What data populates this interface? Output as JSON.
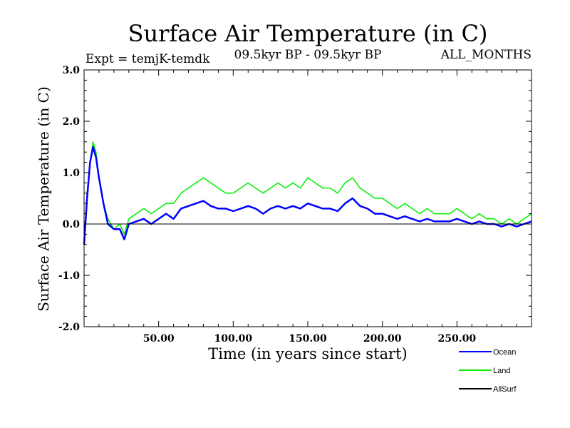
{
  "chart_data": {
    "type": "line",
    "title": "Surface Air Temperature (in C)",
    "subtitle_left": "Expt = temjK-temdk",
    "subtitle_center": "09.5kyr BP - 09.5kyr BP",
    "subtitle_right": "ALL_MONTHS",
    "xlabel": "Time (in years since start)",
    "ylabel": "Surface Air Temperature (in C)",
    "xlim": [
      0,
      300
    ],
    "ylim": [
      -2.0,
      3.0
    ],
    "x_ticks": [
      50,
      100,
      150,
      200,
      250
    ],
    "x_tick_labels": [
      "50.00",
      "100.00",
      "150.00",
      "200.00",
      "250.00"
    ],
    "y_ticks": [
      -2.0,
      -1.0,
      0.0,
      1.0,
      2.0,
      3.0
    ],
    "y_tick_labels": [
      "-2.0",
      "-1.0",
      "0.0",
      "1.0",
      "2.0",
      "3.0"
    ],
    "reference_line": 0.0,
    "legend_position": "bottom-right, below plot",
    "series": [
      {
        "name": "Land",
        "color": "#00ee00",
        "x": [
          0,
          2,
          4,
          6,
          8,
          10,
          13,
          16,
          20,
          24,
          27,
          30,
          35,
          40,
          45,
          50,
          55,
          60,
          65,
          70,
          75,
          80,
          85,
          90,
          95,
          100,
          105,
          110,
          115,
          120,
          125,
          130,
          135,
          140,
          145,
          150,
          155,
          160,
          165,
          170,
          175,
          180,
          185,
          190,
          195,
          200,
          205,
          210,
          215,
          220,
          225,
          230,
          235,
          240,
          245,
          250,
          255,
          260,
          265,
          270,
          275,
          280,
          285,
          290,
          295,
          300
        ],
        "values": [
          -0.3,
          0.6,
          1.2,
          1.6,
          1.4,
          0.9,
          0.4,
          0.1,
          -0.1,
          0.0,
          -0.2,
          0.1,
          0.2,
          0.3,
          0.2,
          0.3,
          0.4,
          0.4,
          0.6,
          0.7,
          0.8,
          0.9,
          0.8,
          0.7,
          0.6,
          0.6,
          0.7,
          0.8,
          0.7,
          0.6,
          0.7,
          0.8,
          0.7,
          0.8,
          0.7,
          0.9,
          0.8,
          0.7,
          0.7,
          0.6,
          0.8,
          0.9,
          0.7,
          0.6,
          0.5,
          0.5,
          0.4,
          0.3,
          0.4,
          0.3,
          0.2,
          0.3,
          0.2,
          0.2,
          0.2,
          0.3,
          0.2,
          0.1,
          0.2,
          0.1,
          0.1,
          0.0,
          0.1,
          0.0,
          0.1,
          0.2
        ]
      },
      {
        "name": "Ocean",
        "color": "#0000ff",
        "x": [
          0,
          2,
          4,
          6,
          8,
          10,
          13,
          16,
          20,
          24,
          27,
          30,
          35,
          40,
          45,
          50,
          55,
          60,
          65,
          70,
          75,
          80,
          85,
          90,
          95,
          100,
          105,
          110,
          115,
          120,
          125,
          130,
          135,
          140,
          145,
          150,
          155,
          160,
          165,
          170,
          175,
          180,
          185,
          190,
          195,
          200,
          205,
          210,
          215,
          220,
          225,
          230,
          235,
          240,
          245,
          250,
          255,
          260,
          265,
          270,
          275,
          280,
          285,
          290,
          295,
          300
        ],
        "values": [
          -0.4,
          0.5,
          1.2,
          1.5,
          1.3,
          0.9,
          0.4,
          0.0,
          -0.1,
          -0.1,
          -0.3,
          0.0,
          0.05,
          0.1,
          0.0,
          0.1,
          0.2,
          0.1,
          0.3,
          0.35,
          0.4,
          0.45,
          0.35,
          0.3,
          0.3,
          0.25,
          0.3,
          0.35,
          0.3,
          0.2,
          0.3,
          0.35,
          0.3,
          0.35,
          0.3,
          0.4,
          0.35,
          0.3,
          0.3,
          0.25,
          0.4,
          0.5,
          0.35,
          0.3,
          0.2,
          0.2,
          0.15,
          0.1,
          0.15,
          0.1,
          0.05,
          0.1,
          0.05,
          0.05,
          0.05,
          0.1,
          0.05,
          0.0,
          0.05,
          0.0,
          0.0,
          -0.05,
          0.0,
          -0.05,
          0.0,
          0.05
        ]
      },
      {
        "name": "AllSurf",
        "color": "#000000",
        "x": [],
        "values": []
      }
    ]
  }
}
